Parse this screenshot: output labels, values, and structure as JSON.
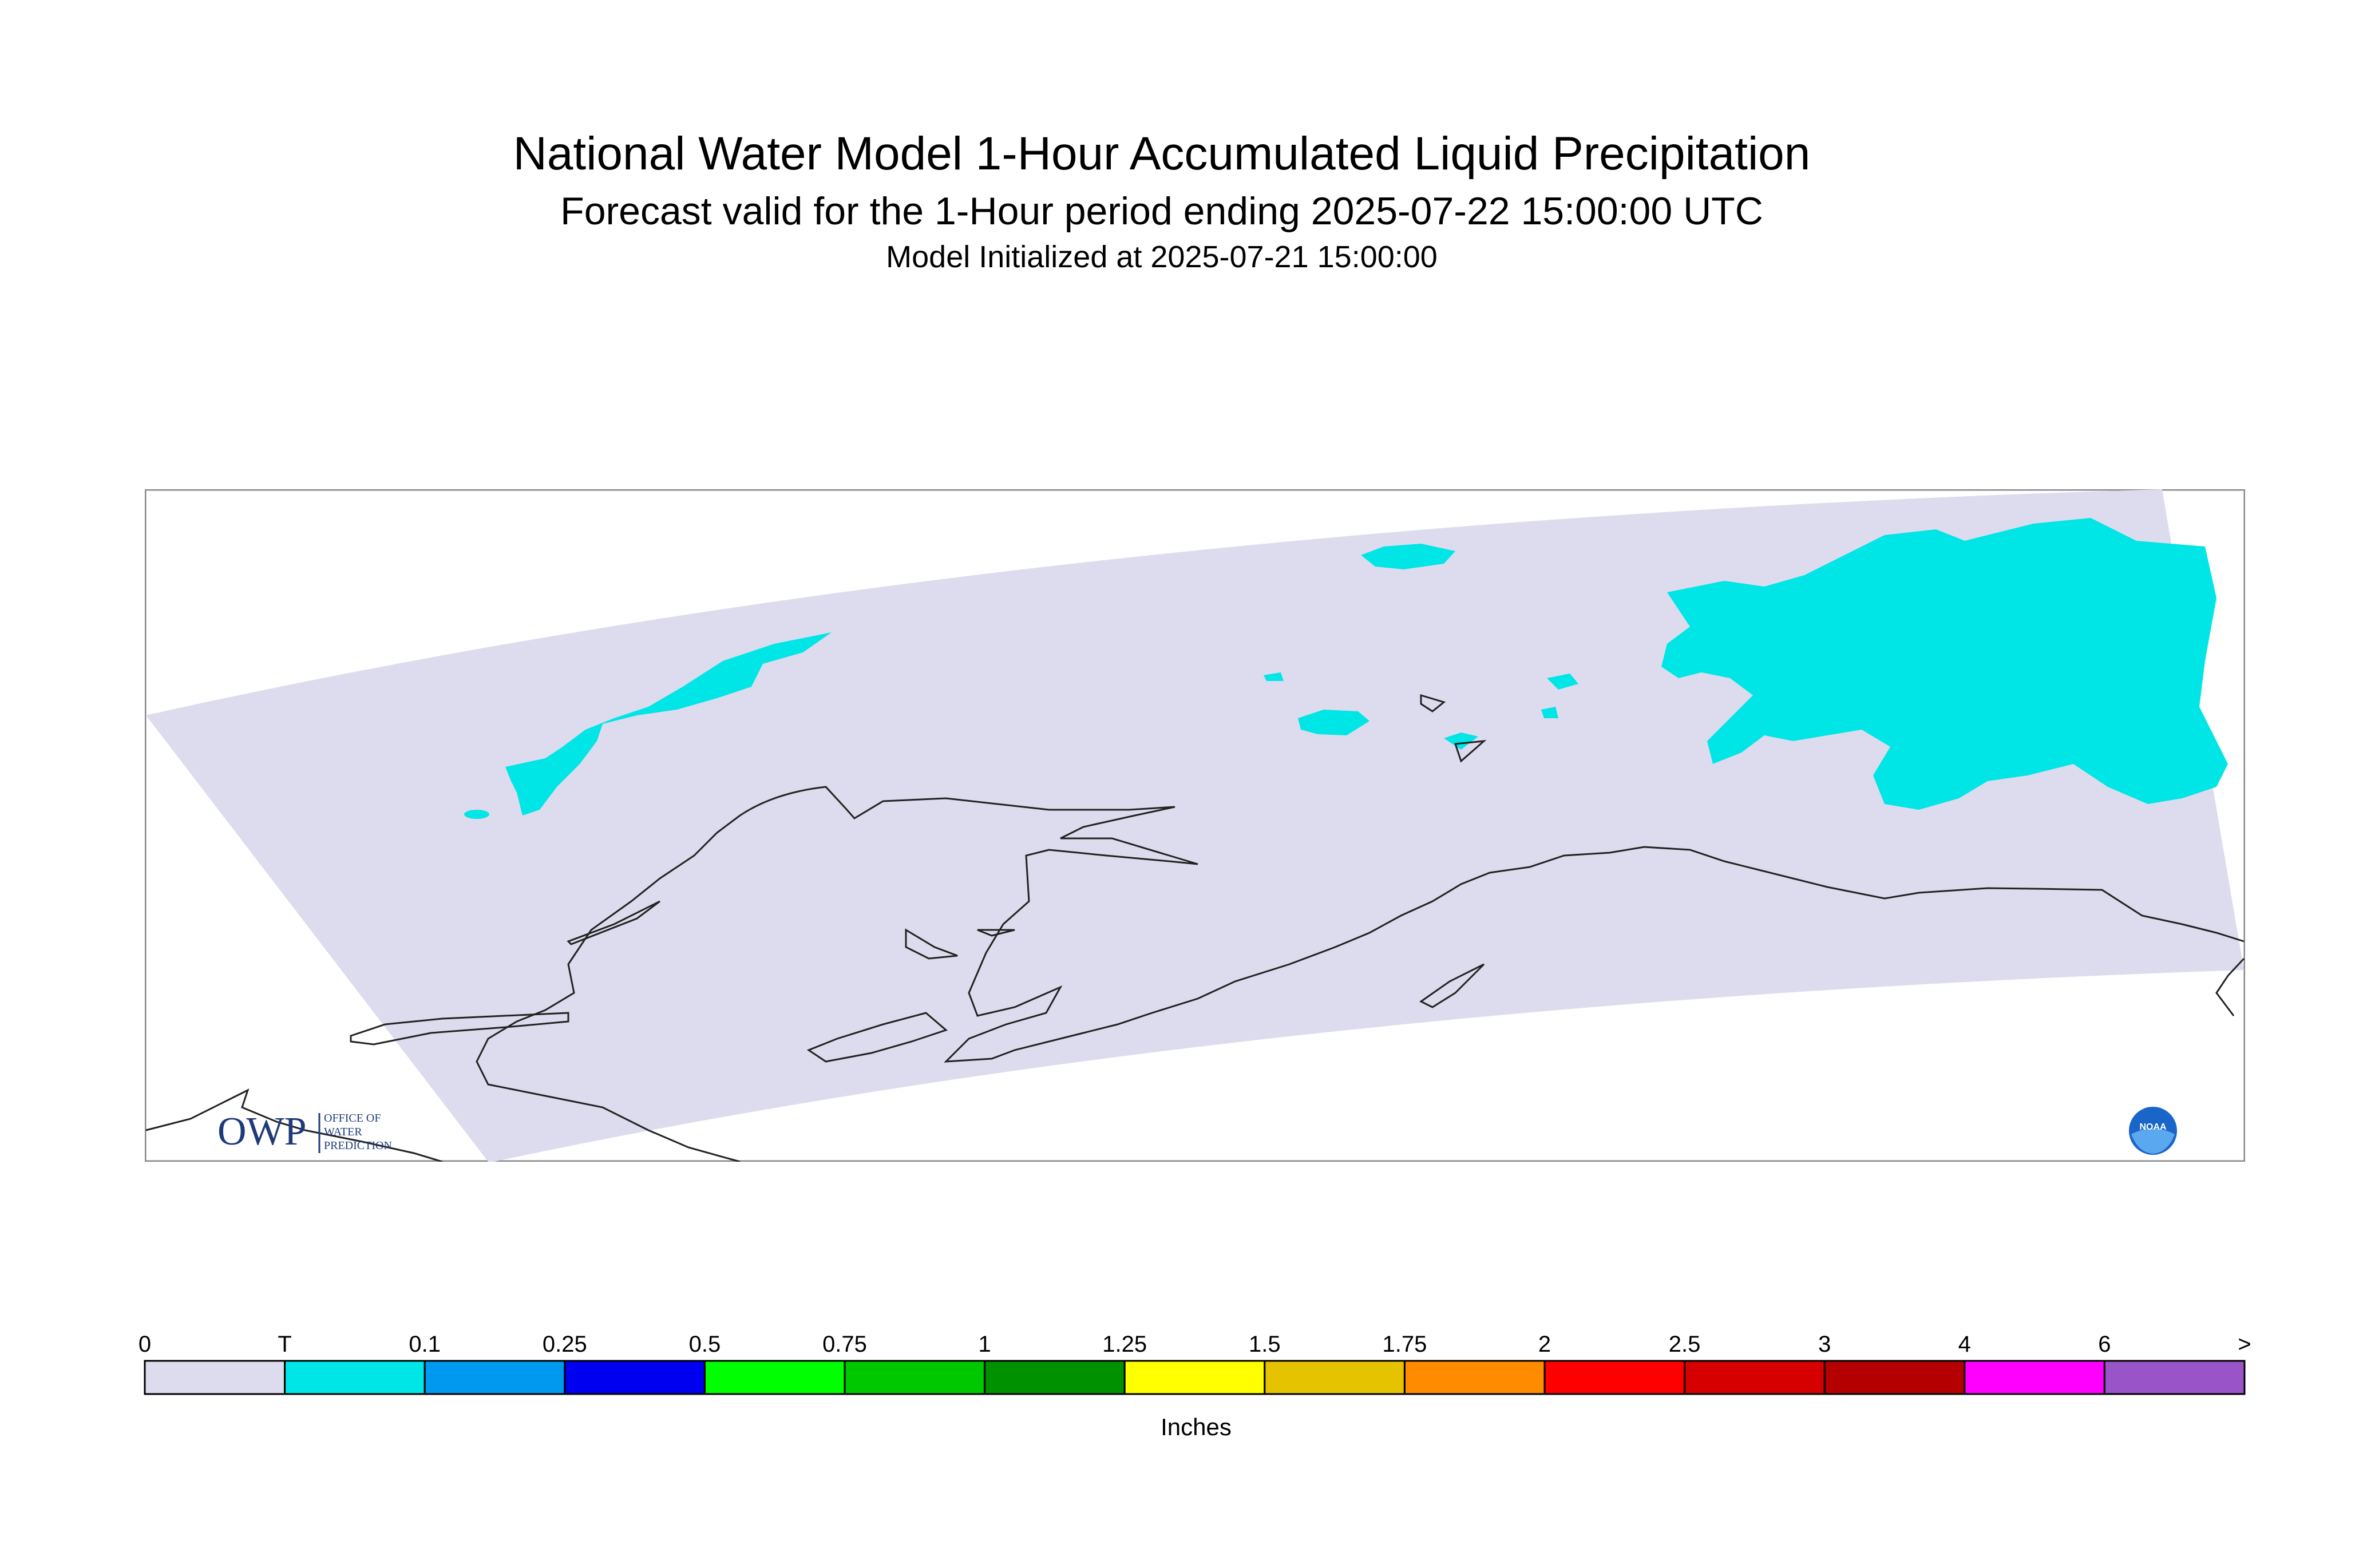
{
  "title": "National Water Model 1-Hour Accumulated Liquid Precipitation",
  "subtitle": "Forecast valid for the 1-Hour period ending 2025-07-22 15:00:00 UTC",
  "initialized": "Model Initialized at 2025-07-21 15:00:00",
  "colors": {
    "domain": "#dcdcee",
    "precip_trace": "#00e5e5",
    "coast": "#222222",
    "frame": "#888888"
  },
  "legend": {
    "units": "Inches",
    "ticks": [
      "0",
      "T",
      "0.1",
      "0.25",
      "0.5",
      "0.75",
      "1",
      "1.25",
      "1.5",
      "1.75",
      "2",
      "2.5",
      "3",
      "4",
      "6",
      ">"
    ],
    "colors": [
      "#dcdcee",
      "#00e5e5",
      "#0099f0",
      "#0000f0",
      "#00ff00",
      "#00c800",
      "#009100",
      "#ffff00",
      "#e6c300",
      "#ff8c00",
      "#ff0000",
      "#d70000",
      "#b40000",
      "#ff00ff",
      "#9955c8"
    ]
  },
  "logos": {
    "owp_text": "OWP",
    "owp_sub": [
      "OFFICE OF",
      "WATER",
      "PREDICTION"
    ],
    "noaa_text": "NOAA"
  }
}
